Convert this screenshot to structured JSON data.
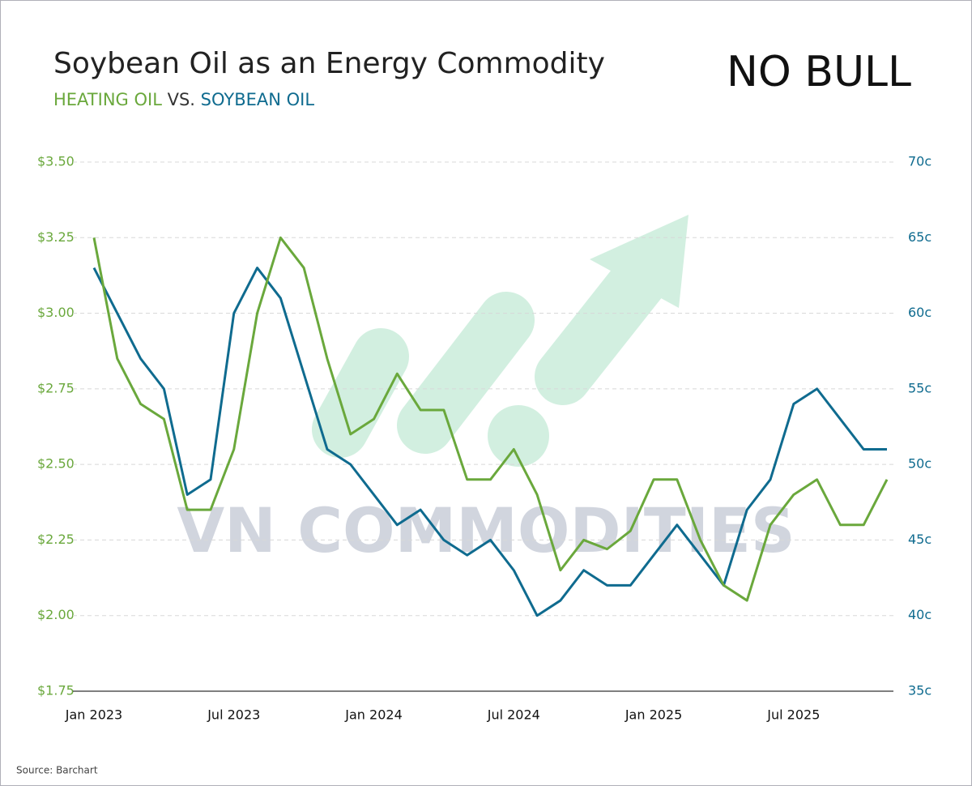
{
  "chart_data": {
    "type": "line",
    "title": "Soybean Oil as an Energy Commodity",
    "subtitle_joiner": "VS.",
    "logo": "NO BULL",
    "watermark": "VN COMMODITIES",
    "source": "Source: Barchart",
    "x": [
      "2023-01",
      "2023-02",
      "2023-03",
      "2023-04",
      "2023-05",
      "2023-06",
      "2023-07",
      "2023-08",
      "2023-09",
      "2023-10",
      "2023-11",
      "2023-12",
      "2024-01",
      "2024-02",
      "2024-03",
      "2024-04",
      "2024-05",
      "2024-06",
      "2024-07",
      "2024-08",
      "2024-09",
      "2024-10",
      "2024-11",
      "2024-12",
      "2025-01",
      "2025-02",
      "2025-03",
      "2025-04",
      "2025-05",
      "2025-06",
      "2025-07",
      "2025-08",
      "2025-09",
      "2025-10",
      "2025-11"
    ],
    "xlim": [
      "2023-01",
      "2025-11"
    ],
    "xticks": [
      {
        "value": "2023-01",
        "label": "Jan 2023"
      },
      {
        "value": "2023-07",
        "label": "Jul 2023"
      },
      {
        "value": "2024-01",
        "label": "Jan 2024"
      },
      {
        "value": "2024-07",
        "label": "Jul 2024"
      },
      {
        "value": "2025-01",
        "label": "Jan 2025"
      },
      {
        "value": "2025-07",
        "label": "Jul 2025"
      }
    ],
    "series": [
      {
        "name": "HEATING OIL",
        "color": "#6aa83c",
        "axis": "y",
        "values": [
          3.25,
          2.85,
          2.7,
          2.65,
          2.35,
          2.35,
          2.55,
          3.0,
          3.25,
          3.15,
          2.85,
          2.6,
          2.65,
          2.8,
          2.68,
          2.68,
          2.45,
          2.45,
          2.55,
          2.4,
          2.15,
          2.25,
          2.22,
          2.28,
          2.45,
          2.45,
          2.25,
          2.1,
          2.05,
          2.3,
          2.4,
          2.45,
          2.3,
          2.3,
          2.45
        ]
      },
      {
        "name": "SOYBEAN OIL",
        "color": "#0f6b8f",
        "axis": "y2",
        "values": [
          63,
          60,
          57,
          55,
          48,
          49,
          60,
          63,
          61,
          56,
          51,
          50,
          48,
          46,
          47,
          45,
          44,
          45,
          43,
          40,
          41,
          43,
          42,
          42,
          44,
          46,
          44,
          42,
          47,
          49,
          54,
          55,
          53,
          51,
          51
        ]
      }
    ],
    "ylim": [
      1.75,
      3.5
    ],
    "yticks": [
      {
        "value": 1.75,
        "label": "$1.75"
      },
      {
        "value": 2.0,
        "label": "$2.00"
      },
      {
        "value": 2.25,
        "label": "$2.25"
      },
      {
        "value": 2.5,
        "label": "$2.50"
      },
      {
        "value": 2.75,
        "label": "$2.75"
      },
      {
        "value": 3.0,
        "label": "$3.00"
      },
      {
        "value": 3.25,
        "label": "$3.25"
      },
      {
        "value": 3.5,
        "label": "$3.50"
      }
    ],
    "y2lim": [
      35,
      70
    ],
    "y2ticks": [
      {
        "value": 35,
        "label": "35c"
      },
      {
        "value": 40,
        "label": "40c"
      },
      {
        "value": 45,
        "label": "45c"
      },
      {
        "value": 50,
        "label": "50c"
      },
      {
        "value": 55,
        "label": "55c"
      },
      {
        "value": 60,
        "label": "60c"
      },
      {
        "value": 65,
        "label": "65c"
      },
      {
        "value": 70,
        "label": "70c"
      }
    ],
    "grid": true
  }
}
